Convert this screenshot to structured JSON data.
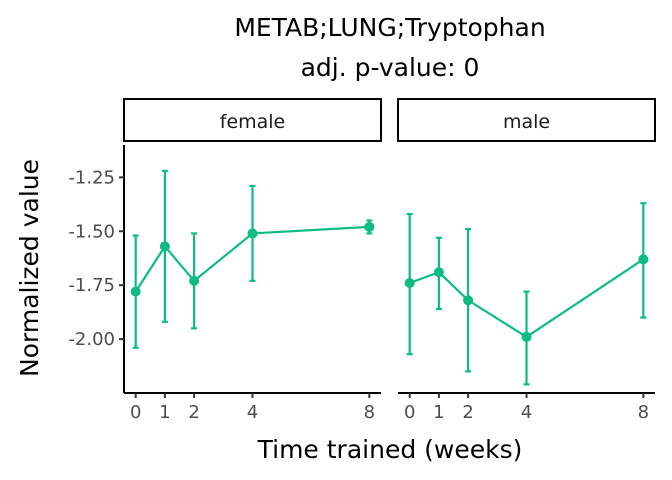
{
  "chart_data": {
    "type": "line",
    "title": "METAB;LUNG;Tryptophan",
    "subtitle": "adj. p-value: 0",
    "xlabel": "Time trained (weeks)",
    "ylabel": "Normalized value",
    "x_ticks": [
      "0",
      "1",
      "2",
      "4",
      "8"
    ],
    "y_ticks": [
      "-1.25",
      "-1.50",
      "-1.75",
      "-2.00"
    ],
    "x_range": [
      -0.4,
      8.4
    ],
    "y_range": [
      -2.25,
      -1.1
    ],
    "color": "#0cbc82",
    "panels": [
      {
        "name": "female",
        "x": [
          0,
          1,
          2,
          4,
          8
        ],
        "y": [
          -1.78,
          -1.57,
          -1.73,
          -1.51,
          -1.48
        ],
        "y_low": [
          -2.04,
          -1.92,
          -1.95,
          -1.73,
          -1.51
        ],
        "y_high": [
          -1.52,
          -1.22,
          -1.51,
          -1.29,
          -1.45
        ]
      },
      {
        "name": "male",
        "x": [
          0,
          1,
          2,
          4,
          8
        ],
        "y": [
          -1.74,
          -1.69,
          -1.82,
          -1.99,
          -1.63
        ],
        "y_low": [
          -2.07,
          -1.86,
          -2.15,
          -2.21,
          -1.9
        ],
        "y_high": [
          -1.42,
          -1.53,
          -1.49,
          -1.78,
          -1.37
        ]
      }
    ]
  }
}
